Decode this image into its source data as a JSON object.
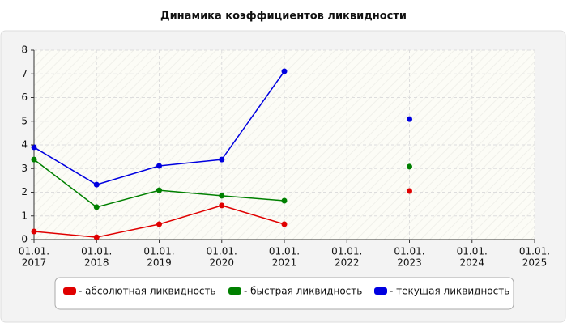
{
  "chart_data": {
    "type": "line",
    "title": "Динамика коэффициентов ликвидности",
    "categories": [
      [
        "01.01.",
        "2017"
      ],
      [
        "01.01.",
        "2018"
      ],
      [
        "01.01.",
        "2019"
      ],
      [
        "01.01.",
        "2020"
      ],
      [
        "01.01.",
        "2021"
      ],
      [
        "01.01.",
        "2022"
      ],
      [
        "01.01.",
        "2023"
      ],
      [
        "01.01.",
        "2024"
      ],
      [
        "01.01.",
        "2025"
      ]
    ],
    "series": [
      {
        "name": "- абсолютная ликвидность",
        "color": "#e00000",
        "values": [
          0.34,
          0.1,
          0.65,
          1.44,
          0.65,
          null,
          2.05,
          null,
          null
        ]
      },
      {
        "name": "- быстрая ликвидность",
        "color": "#008000",
        "values": [
          3.38,
          1.37,
          2.08,
          1.85,
          1.64,
          null,
          3.08,
          null,
          null
        ]
      },
      {
        "name": "- текущая ликвидность",
        "color": "#0000e0",
        "values": [
          3.9,
          2.32,
          3.11,
          3.38,
          7.11,
          null,
          5.09,
          null,
          null
        ]
      }
    ],
    "ylim": [
      0,
      8
    ],
    "yticks": [
      0,
      1,
      2,
      3,
      4,
      5,
      6,
      7,
      8
    ],
    "grid": true
  }
}
